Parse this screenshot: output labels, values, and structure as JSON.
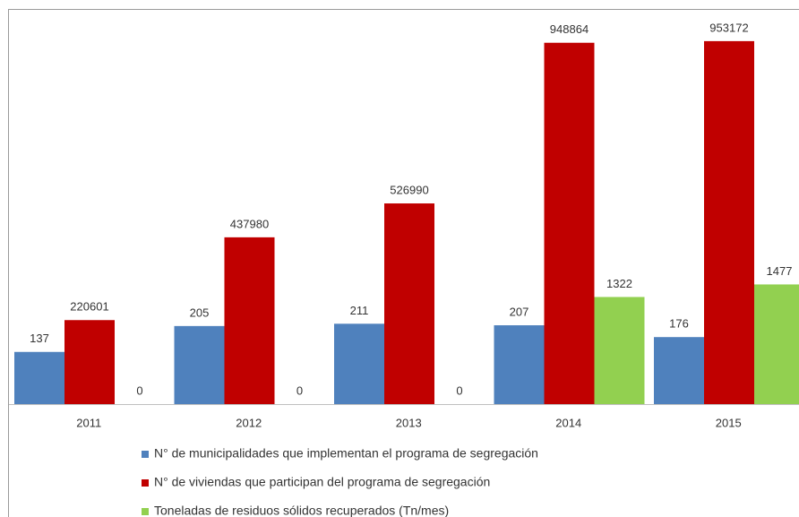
{
  "chart_data": {
    "type": "bar",
    "categories": [
      "2011",
      "2012",
      "2013",
      "2014",
      "2015"
    ],
    "series": [
      {
        "name": "N° de municipalidades que implementan el programa de segregación",
        "color": "#4f81bd",
        "values": [
          137,
          205,
          211,
          207,
          176
        ],
        "ylim": [
          0,
          1000
        ]
      },
      {
        "name": "N° de viviendas que participan del programa de segregación",
        "color": "#c00000",
        "values": [
          220601,
          437980,
          526990,
          948864,
          953172
        ],
        "ylim": [
          0,
          1000000
        ]
      },
      {
        "name": "Toneladas de residuos sólidos recuperados (Tn/mes)",
        "color": "#92d050",
        "values": [
          0,
          0,
          0,
          1322,
          1477
        ],
        "ylim": [
          0,
          4700
        ]
      }
    ]
  }
}
